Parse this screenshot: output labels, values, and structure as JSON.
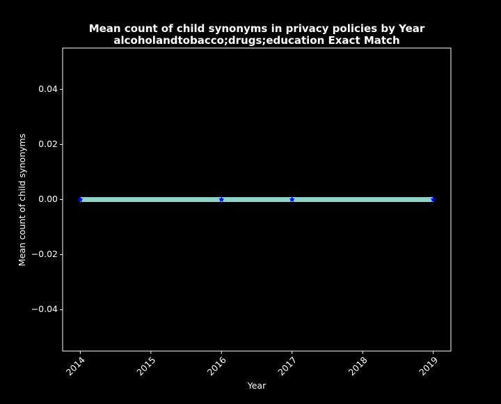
{
  "chart_data": {
    "type": "line",
    "title_line1": "Mean count of child synonyms in privacy policies by Year",
    "title_line2": "alcoholandtobacco;drugs;education Exact Match",
    "xlabel": "Year",
    "ylabel": "Mean count of child synonyms",
    "xlim": [
      2013.75,
      2019.25
    ],
    "ylim": [
      -0.055,
      0.055
    ],
    "x_ticks": [
      2014,
      2015,
      2016,
      2017,
      2018,
      2019
    ],
    "x_tick_labels": [
      "2014",
      "2015",
      "2016",
      "2017",
      "2018",
      "2019"
    ],
    "y_ticks": [
      -0.04,
      -0.02,
      0.0,
      0.02,
      0.04
    ],
    "y_tick_labels": [
      "−0.04",
      "−0.02",
      "0.00",
      "0.02",
      "0.04"
    ],
    "series": [
      {
        "x": [
          2014,
          2016,
          2017,
          2019
        ],
        "y": [
          0,
          0,
          0,
          0
        ],
        "line_color": "#8dd3c7",
        "marker": "star",
        "marker_color": "#0000ff"
      }
    ],
    "grid": false,
    "background_color": "#000000",
    "text_color": "#ffffff"
  }
}
